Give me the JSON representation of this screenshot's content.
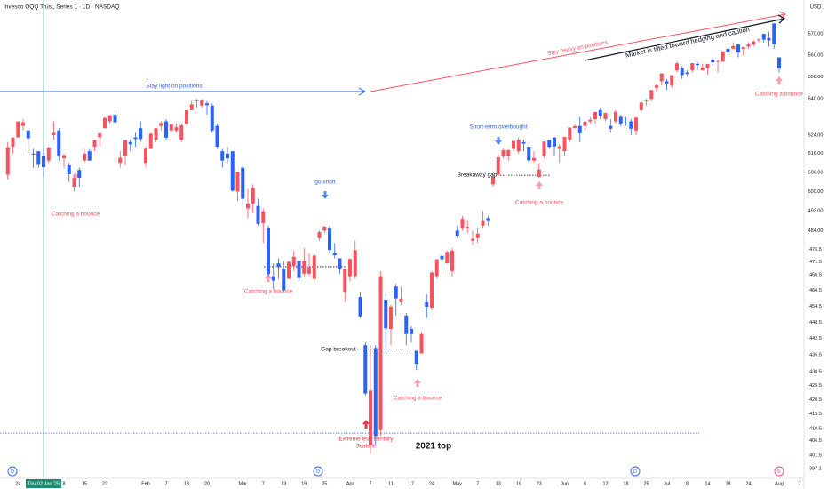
{
  "chart_data": {
    "type": "candlestick",
    "title": "Invesco QQQ Trust, Series 1 · 1D · NASDAQ",
    "currency": "USD",
    "log_scale": true,
    "grid": false,
    "up_color": "#f7525f",
    "down_color": "#2962ff",
    "ylim": [
      393.9,
      586.3
    ],
    "yticks": [
      {
        "value": 570,
        "label": "570.00"
      },
      {
        "value": 560,
        "label": "560.00"
      },
      {
        "value": 550,
        "label": "550.00"
      },
      {
        "value": 540,
        "label": "540.00"
      },
      {
        "value": 524,
        "label": "524.00"
      },
      {
        "value": 516,
        "label": "516.00"
      },
      {
        "value": 508,
        "label": "508.00"
      },
      {
        "value": 500,
        "label": "500.00"
      },
      {
        "value": 492,
        "label": "492.00"
      },
      {
        "value": 484,
        "label": "484.00"
      },
      476.5,
      471.5,
      466.5,
      460.5,
      454.5,
      448.5,
      442.5,
      436.5,
      430.5,
      425.5,
      420.5,
      415.5,
      410.5,
      406.5,
      401.5,
      397.1
    ],
    "categories": [
      null,
      null,
      "24",
      null,
      null,
      null,
      null,
      "Thu 02 Jan '25",
      null,
      null,
      null,
      "8",
      null,
      null,
      null,
      "15",
      null,
      null,
      null,
      "22",
      null,
      null,
      null,
      null,
      null,
      null,
      null,
      "Feb",
      null,
      null,
      null,
      "7",
      null,
      null,
      null,
      "13",
      null,
      null,
      null,
      "20",
      null,
      null,
      null,
      null,
      null,
      null,
      "Mar",
      null,
      null,
      null,
      "7",
      null,
      null,
      null,
      "13",
      null,
      null,
      null,
      "19",
      null,
      null,
      null,
      "25",
      null,
      null,
      null,
      null,
      "Apr",
      null,
      null,
      null,
      "7",
      null,
      null,
      null,
      "11",
      null,
      null,
      null,
      "17",
      null,
      null,
      null,
      "24",
      null,
      null,
      null,
      null,
      "May",
      null,
      null,
      null,
      "7",
      null,
      null,
      null,
      "13",
      null,
      null,
      null,
      "19",
      null,
      null,
      null,
      "23",
      null,
      null,
      null,
      null,
      "Jun",
      null,
      null,
      null,
      "6",
      null,
      null,
      null,
      "12",
      null,
      null,
      null,
      "18",
      null,
      null,
      null,
      "25",
      null,
      null,
      null,
      "Jul",
      null,
      null,
      null,
      "8",
      null,
      null,
      null,
      "14",
      null,
      null,
      null,
      "18",
      null,
      null,
      null,
      "24",
      null,
      null,
      null,
      null,
      null,
      "Aug",
      null,
      null,
      null,
      "7"
    ],
    "ohlc": [
      [
        507,
        521,
        505,
        518.7
      ],
      [
        519,
        523,
        516,
        522.9
      ],
      [
        523,
        530,
        523,
        530
      ],
      [
        528,
        531,
        526,
        529.6
      ],
      [
        526,
        527,
        516,
        522.6
      ],
      [
        516,
        518,
        510,
        515.6
      ],
      [
        517,
        517,
        510,
        511.2
      ],
      [
        515,
        518,
        506,
        510.2
      ],
      [
        513,
        519,
        512,
        518.6
      ],
      [
        524,
        530,
        522,
        525
      ],
      [
        526,
        527,
        513,
        515.2
      ],
      [
        514,
        516,
        510,
        515.3
      ],
      [
        511,
        512,
        504,
        507.2
      ],
      [
        502,
        506,
        500,
        505.6
      ],
      [
        509,
        510,
        502,
        505.7
      ],
      [
        513,
        518,
        512,
        516
      ],
      [
        517,
        518,
        513,
        513
      ],
      [
        519,
        522,
        517,
        521.7
      ],
      [
        523,
        525,
        519,
        524.8
      ],
      [
        527,
        532,
        527,
        531.5
      ],
      [
        530,
        533,
        529,
        532.6
      ],
      [
        533,
        535,
        528,
        529.6
      ],
      [
        512,
        517,
        510,
        514.2
      ],
      [
        515,
        522,
        511,
        521.8
      ],
      [
        521,
        522,
        517,
        520
      ],
      [
        523,
        525,
        519,
        522.3
      ],
      [
        527,
        530,
        521,
        522.3
      ],
      [
        512,
        519,
        510,
        518.1
      ],
      [
        518,
        525,
        518,
        524.6
      ],
      [
        522,
        527,
        521,
        527
      ],
      [
        528,
        530,
        526,
        529.3
      ],
      [
        530,
        531,
        522,
        522.9
      ],
      [
        526,
        529,
        525,
        528.7
      ],
      [
        526,
        529,
        525,
        527.4
      ],
      [
        522,
        529,
        521,
        528.3
      ],
      [
        529,
        535,
        528,
        534.9
      ],
      [
        535,
        539,
        535,
        537.6
      ],
      [
        539,
        540,
        536,
        539.2
      ],
      [
        537,
        540,
        536,
        539.6
      ],
      [
        538,
        539,
        533,
        537.2
      ],
      [
        537,
        538,
        525,
        526
      ],
      [
        528,
        529,
        518,
        519
      ],
      [
        517,
        518,
        510,
        513
      ],
      [
        516,
        519,
        512,
        514
      ],
      [
        517,
        517,
        500,
        500.3
      ],
      [
        500,
        508,
        496,
        508.2
      ],
      [
        510,
        511,
        494,
        497
      ],
      [
        493,
        501,
        489,
        495
      ],
      [
        495,
        503,
        491,
        501.5
      ],
      [
        494,
        497,
        486,
        486.7
      ],
      [
        487,
        493,
        479,
        491.8
      ],
      [
        485,
        486,
        466,
        466.8
      ],
      [
        466,
        471,
        461,
        464.3
      ],
      [
        471,
        473,
        465,
        469.6
      ],
      [
        469,
        472,
        460,
        460.5
      ],
      [
        465,
        472,
        465,
        471.6
      ],
      [
        470,
        476,
        468,
        473.6
      ],
      [
        472,
        472,
        464,
        465.3
      ],
      [
        467,
        477,
        466,
        471.8
      ],
      [
        467,
        475,
        466,
        469.5
      ],
      [
        465,
        475,
        463,
        474.1
      ],
      [
        481,
        484,
        480,
        483.4
      ],
      [
        484,
        486,
        483,
        485.6
      ],
      [
        485,
        486,
        475,
        476.3
      ],
      [
        475,
        479,
        473,
        474.2
      ],
      [
        473,
        473,
        467,
        468.9
      ],
      [
        460,
        469,
        456,
        468.9
      ],
      [
        466,
        473,
        464,
        472.7
      ],
      [
        466,
        480,
        465,
        476.2
      ],
      [
        458,
        460,
        450,
        450.7
      ],
      [
        440,
        441,
        422,
        422.7
      ],
      [
        405,
        440,
        402,
        423.7
      ],
      [
        439,
        440,
        405,
        408
      ],
      [
        410,
        468,
        408,
        466
      ],
      [
        457,
        459,
        437,
        446.2
      ],
      [
        446,
        455,
        440,
        454.4
      ],
      [
        462,
        463,
        451,
        457.5
      ],
      [
        456,
        462,
        455,
        457.4
      ],
      [
        451,
        452,
        440,
        444.1
      ],
      [
        446,
        447,
        441,
        444.1
      ],
      [
        438,
        438,
        431,
        433.3
      ],
      [
        437,
        445,
        437,
        444.1
      ],
      [
        456,
        459,
        450,
        454.3
      ],
      [
        454,
        468,
        453,
        467.4
      ],
      [
        466,
        472,
        465,
        472.6
      ],
      [
        474,
        475,
        467,
        472.6
      ],
      [
        471,
        476,
        471,
        475.5
      ],
      [
        468,
        477,
        466,
        476
      ],
      [
        484,
        486,
        481,
        481.8
      ],
      [
        485,
        490,
        484,
        488.8
      ],
      [
        485,
        488,
        483,
        485.5
      ],
      [
        480,
        484,
        478,
        480.7
      ],
      [
        481,
        485,
        479,
        482.8
      ],
      [
        486,
        492,
        485,
        487.9
      ],
      [
        489,
        490,
        486,
        487.9
      ],
      [
        503,
        507,
        502,
        506.2
      ],
      [
        507,
        516,
        507,
        514.4
      ],
      [
        515,
        518,
        514,
        517.4
      ],
      [
        515,
        518,
        513,
        517.4
      ],
      [
        518,
        521,
        517,
        521.5
      ],
      [
        517,
        523,
        516,
        522
      ],
      [
        521,
        522,
        517,
        520.3
      ],
      [
        519,
        521,
        512,
        513
      ],
      [
        513,
        517,
        512,
        514.1
      ],
      [
        506,
        512,
        506,
        509.2
      ],
      [
        515,
        521,
        514,
        521.2
      ],
      [
        522,
        522,
        518,
        518.9
      ],
      [
        523,
        523,
        515,
        519.1
      ],
      [
        518,
        520,
        512,
        519.1
      ],
      [
        517,
        523,
        515,
        523.2
      ],
      [
        522,
        527,
        521,
        527.3
      ],
      [
        527,
        529,
        527,
        527.9
      ],
      [
        528,
        532,
        521,
        524.8
      ],
      [
        528,
        530,
        526,
        529.9
      ],
      [
        530,
        532,
        529,
        530.7
      ],
      [
        531,
        534,
        529,
        534.2
      ],
      [
        535,
        536,
        531,
        532.4
      ],
      [
        531,
        534,
        530,
        533.7
      ],
      [
        528,
        531,
        525,
        526.8
      ],
      [
        530,
        535,
        529,
        534.3
      ],
      [
        532,
        533,
        528,
        529.1
      ],
      [
        529,
        532,
        528,
        528.99
      ],
      [
        530,
        531,
        524,
        526.8
      ],
      [
        526,
        531,
        524,
        531.7
      ],
      [
        535,
        539,
        534,
        538.4
      ],
      [
        539,
        540,
        537,
        539.2
      ],
      [
        540,
        544,
        539,
        544
      ],
      [
        545,
        547,
        543,
        546.2
      ],
      [
        548,
        551,
        546,
        551.6
      ],
      [
        548,
        549,
        544,
        546.99
      ],
      [
        546,
        550,
        545,
        550.8
      ],
      [
        553,
        557,
        552,
        556.2
      ],
      [
        554,
        555,
        549,
        550.8
      ],
      [
        552,
        553,
        550,
        551.4
      ],
      [
        553,
        556,
        552,
        556.3
      ],
      [
        556,
        557,
        553,
        555.5
      ],
      [
        553,
        556,
        553,
        554.2
      ],
      [
        554,
        556,
        551,
        555.9
      ],
      [
        558,
        559,
        555,
        556.7
      ],
      [
        557,
        558,
        552,
        557.3
      ],
      [
        557,
        561,
        557,
        561.8
      ],
      [
        563,
        564,
        560,
        561.3
      ],
      [
        563,
        566,
        563,
        564.2
      ],
      [
        565,
        565,
        559,
        561.3
      ],
      [
        563,
        564,
        560,
        563.8
      ],
      [
        564,
        566,
        563,
        565
      ],
      [
        565,
        567,
        564,
        566.4
      ],
      [
        567,
        568,
        566,
        567.3
      ],
      [
        570,
        570,
        566,
        567.3
      ],
      [
        568,
        571,
        564,
        566.9
      ],
      [
        575,
        575,
        563,
        565
      ],
      [
        559,
        559,
        552,
        553.9
      ],
      null,
      null,
      null,
      null
    ],
    "levels": [
      469.7,
      438.6,
      506.8,
      409
    ],
    "annotations": [
      "Stay light on positions",
      "Stay heavy on positions",
      "Market is tilted toward hedging and caution",
      "Catching a bounce",
      "Catching a bounce",
      "Catching a bounce",
      "Catching a bounce",
      "Catching a bounce",
      "go short",
      "Short-term overbought",
      "Breakaway gap",
      "Gap breakout",
      "Extreme fear territory",
      "Scale in",
      "2021 top"
    ],
    "event_markers": [
      "D",
      "D",
      "D",
      "E"
    ]
  }
}
